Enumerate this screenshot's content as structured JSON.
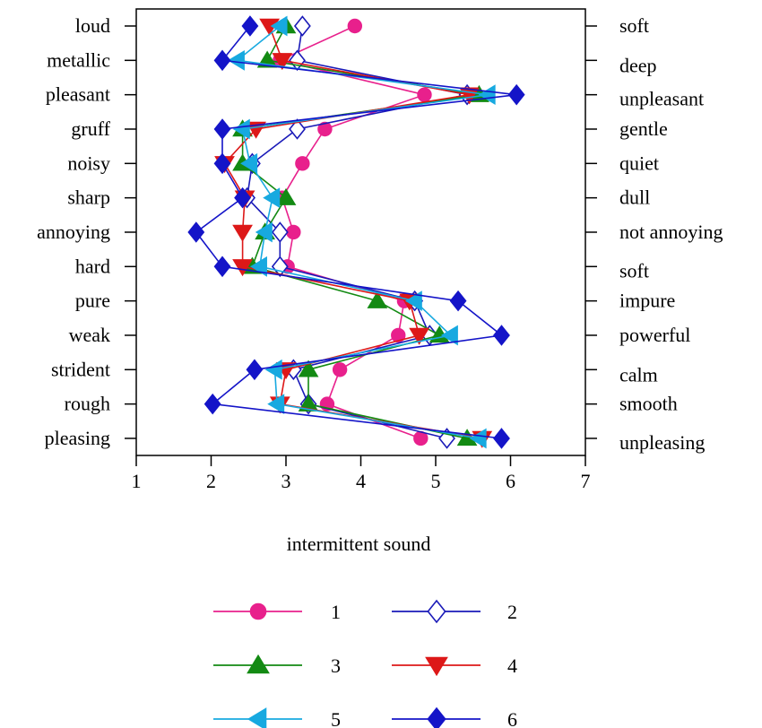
{
  "chart_data": {
    "type": "line",
    "orientation": "horizontal",
    "xlabel": "intermittent sound",
    "xlim": [
      1,
      7
    ],
    "xticks": [
      1,
      2,
      3,
      4,
      5,
      6,
      7
    ],
    "left_labels": [
      "loud",
      "metallic",
      "pleasant",
      "gruff",
      "noisy",
      "sharp",
      "annoying",
      "hard",
      "pure",
      "weak",
      "strident",
      "rough",
      "pleasing"
    ],
    "right_labels": [
      "soft",
      "deep",
      "unpleasant",
      "gentle",
      "quiet",
      "dull",
      "not annoying",
      "soft",
      "impure",
      "powerful",
      "calm",
      "smooth",
      "unpleasing"
    ],
    "grid": false,
    "legend_position": "bottom",
    "series": [
      {
        "name": "1",
        "color": "#e8208c",
        "marker": "circle-filled",
        "values": [
          3.92,
          2.92,
          4.85,
          3.52,
          3.22,
          2.95,
          3.1,
          3.02,
          4.58,
          4.5,
          3.72,
          3.55,
          4.8
        ]
      },
      {
        "name": "2",
        "color": "#1a1ab8",
        "marker": "diamond-open",
        "values": [
          3.22,
          3.15,
          5.42,
          3.15,
          2.55,
          2.48,
          2.92,
          2.92,
          4.72,
          4.92,
          3.1,
          3.3,
          5.15
        ]
      },
      {
        "name": "3",
        "color": "#138a13",
        "marker": "triangle-up",
        "values": [
          3.0,
          2.75,
          5.58,
          2.42,
          2.42,
          3.0,
          2.72,
          2.55,
          4.22,
          5.05,
          3.3,
          3.3,
          5.42
        ]
      },
      {
        "name": "4",
        "color": "#dd1818",
        "marker": "triangle-down",
        "values": [
          2.78,
          2.95,
          5.45,
          2.6,
          2.18,
          2.45,
          2.42,
          2.42,
          4.65,
          4.78,
          3.0,
          2.92,
          5.62
        ]
      },
      {
        "name": "5",
        "color": "#17a9e0",
        "marker": "triangle-left",
        "values": [
          2.92,
          2.35,
          5.7,
          2.42,
          2.52,
          2.82,
          2.72,
          2.65,
          4.72,
          5.2,
          2.85,
          2.88,
          5.58
        ]
      },
      {
        "name": "6",
        "color": "#1414c8",
        "marker": "diamond-filled",
        "values": [
          2.52,
          2.15,
          6.08,
          2.15,
          2.15,
          2.42,
          1.8,
          2.15,
          5.3,
          5.88,
          2.58,
          2.02,
          5.88
        ]
      }
    ]
  }
}
